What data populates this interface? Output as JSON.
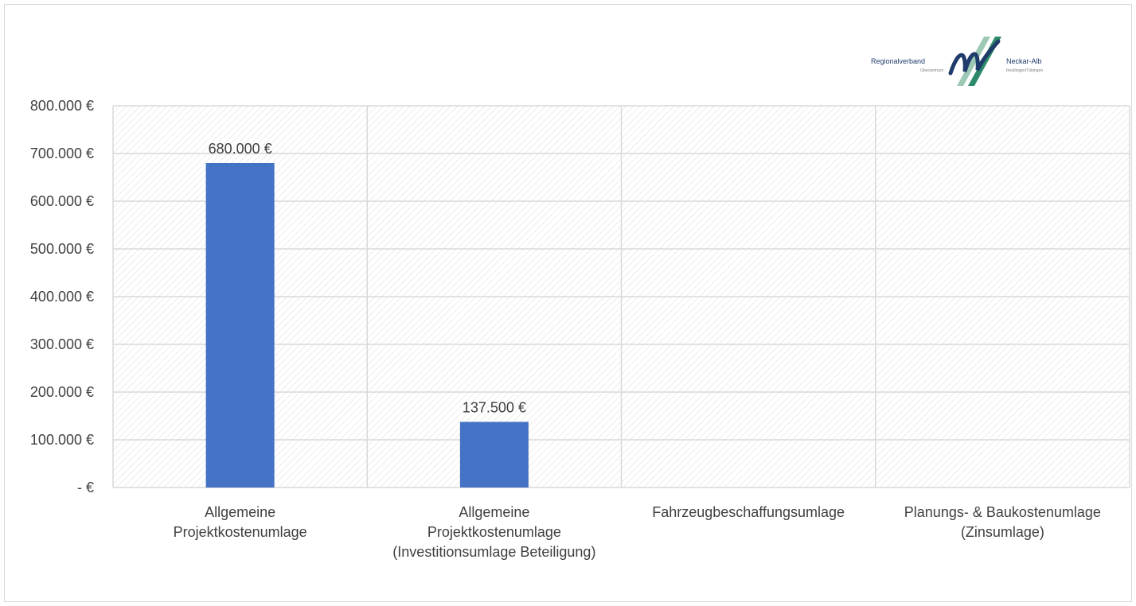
{
  "logo": {
    "text_left": "Regionalverband",
    "text_right": "Neckar-Alb",
    "sub_left": "Oberzentrum",
    "sub_right": "Reutlingen/Tübingen",
    "colors": {
      "dark": "#1f3b6b",
      "green": "#2e8b6a",
      "light": "#9cc8b4"
    }
  },
  "chart_data": {
    "type": "bar",
    "categories": [
      [
        "Allgemeine",
        "Projektkostenumlage"
      ],
      [
        "Allgemeine",
        "Projektkostenumlage",
        "(Investitionsumlage Beteiligung)"
      ],
      [
        "Fahrzeugbeschaffungsumlage"
      ],
      [
        "Planungs- & Baukostenumlage",
        "(Zinsumlage)"
      ]
    ],
    "values": [
      680000,
      137500,
      0,
      0
    ],
    "data_labels": [
      "680.000 €",
      "137.500 €",
      "",
      ""
    ],
    "ylim": [
      0,
      800000
    ],
    "yticks": [
      0,
      100000,
      200000,
      300000,
      400000,
      500000,
      600000,
      700000,
      800000
    ],
    "ytick_labels": [
      "- €",
      "100.000 €",
      "200.000 €",
      "300.000 €",
      "400.000 €",
      "500.000 €",
      "600.000 €",
      "700.000 €",
      "800.000 €"
    ],
    "title": "",
    "xlabel": "",
    "ylabel": "",
    "grid": true,
    "plot_area_pattern": "diagonal-hatch",
    "colors": {
      "bar": "#4472c4",
      "grid": "#d9d9d9",
      "hatch": "#d9d9d9",
      "text": "#404040"
    }
  }
}
